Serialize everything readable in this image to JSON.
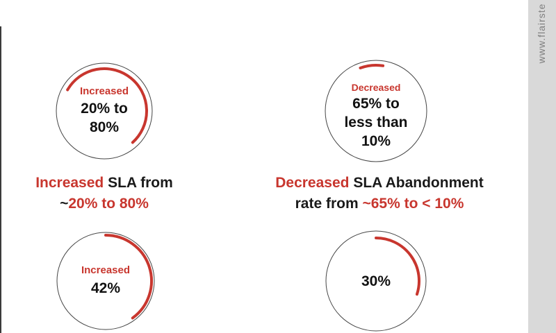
{
  "colors": {
    "accent": "#c8362e",
    "ring": "#444444",
    "strip": "#d9d9d9",
    "watermark": "#7f7f7f"
  },
  "watermark": "www.flairste",
  "gauges": [
    {
      "label": "Increased",
      "value_lines": [
        "20% to",
        "80%"
      ],
      "progress": 0.55,
      "start_deg": -60
    },
    {
      "label": "Decreased",
      "value_lines": [
        "65% to",
        "less than",
        "10%"
      ],
      "progress": 0.08,
      "start_deg": -20
    },
    {
      "label": "Increased",
      "value_lines": [
        "42%"
      ],
      "progress": 0.4,
      "start_deg": 0
    },
    {
      "label": "",
      "value_lines": [
        "30%"
      ],
      "progress": 0.3,
      "start_deg": 0
    }
  ],
  "captions": {
    "sla": {
      "line1_highlight": "Increased",
      "line1_rest": " SLA from",
      "line2_prefix": "~",
      "line2_highlight": "20% to 80%"
    },
    "abandonment": {
      "line1_highlight": "Decreased",
      "line1_rest": " SLA Abandonment",
      "line2_prefix": "rate from ",
      "line2_highlight": "~65% to < 10%"
    }
  }
}
